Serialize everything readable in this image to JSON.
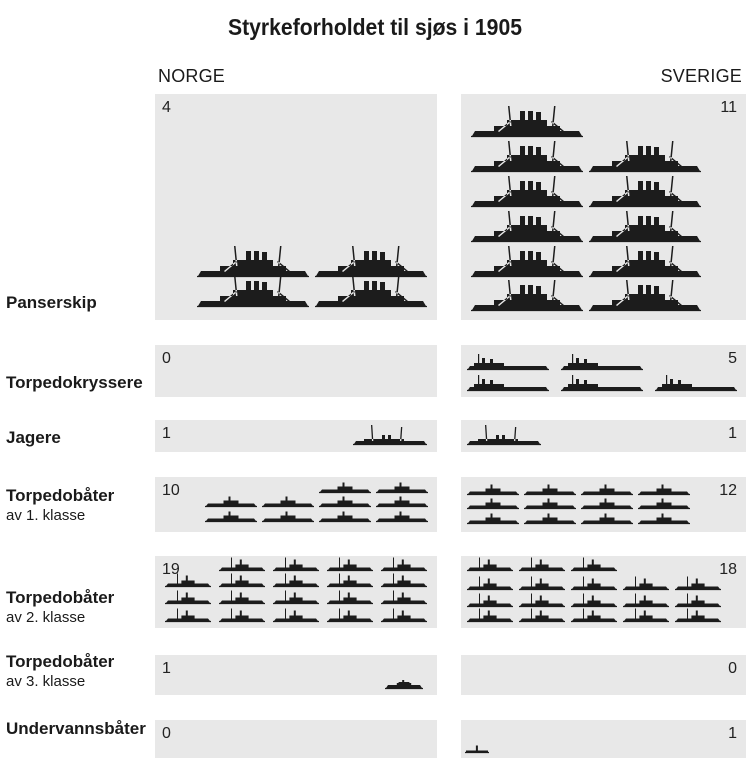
{
  "title": "Styrkeforholdet til sjøs i 1905",
  "countries": {
    "left": "NORGE",
    "right": "SVERIGE"
  },
  "colors": {
    "panel": "#e8e8e8",
    "ship": "#1c1c1c",
    "text": "#1a1a1a"
  },
  "chart_data": {
    "type": "bar",
    "title": "Styrkeforholdet til sjøs i 1905",
    "series_names": [
      "NORGE",
      "SVERIGE"
    ],
    "categories": [
      {
        "name": "Panserskip",
        "sub": "",
        "norge": 4,
        "sverige": 11
      },
      {
        "name": "Torpedokryssere",
        "sub": "",
        "norge": 0,
        "sverige": 5
      },
      {
        "name": "Jagere",
        "sub": "",
        "norge": 1,
        "sverige": 1
      },
      {
        "name": "Torpedobåter",
        "sub": "av 1. klasse",
        "norge": 10,
        "sverige": 12
      },
      {
        "name": "Torpedobåter",
        "sub": "av 2. klasse",
        "norge": 19,
        "sverige": 18
      },
      {
        "name": "Torpedobåter",
        "sub": "av 3. klasse",
        "norge": 1,
        "sverige": 0
      },
      {
        "name": "Undervannsbåter",
        "sub": "",
        "norge": 0,
        "sverige": 1
      }
    ]
  }
}
